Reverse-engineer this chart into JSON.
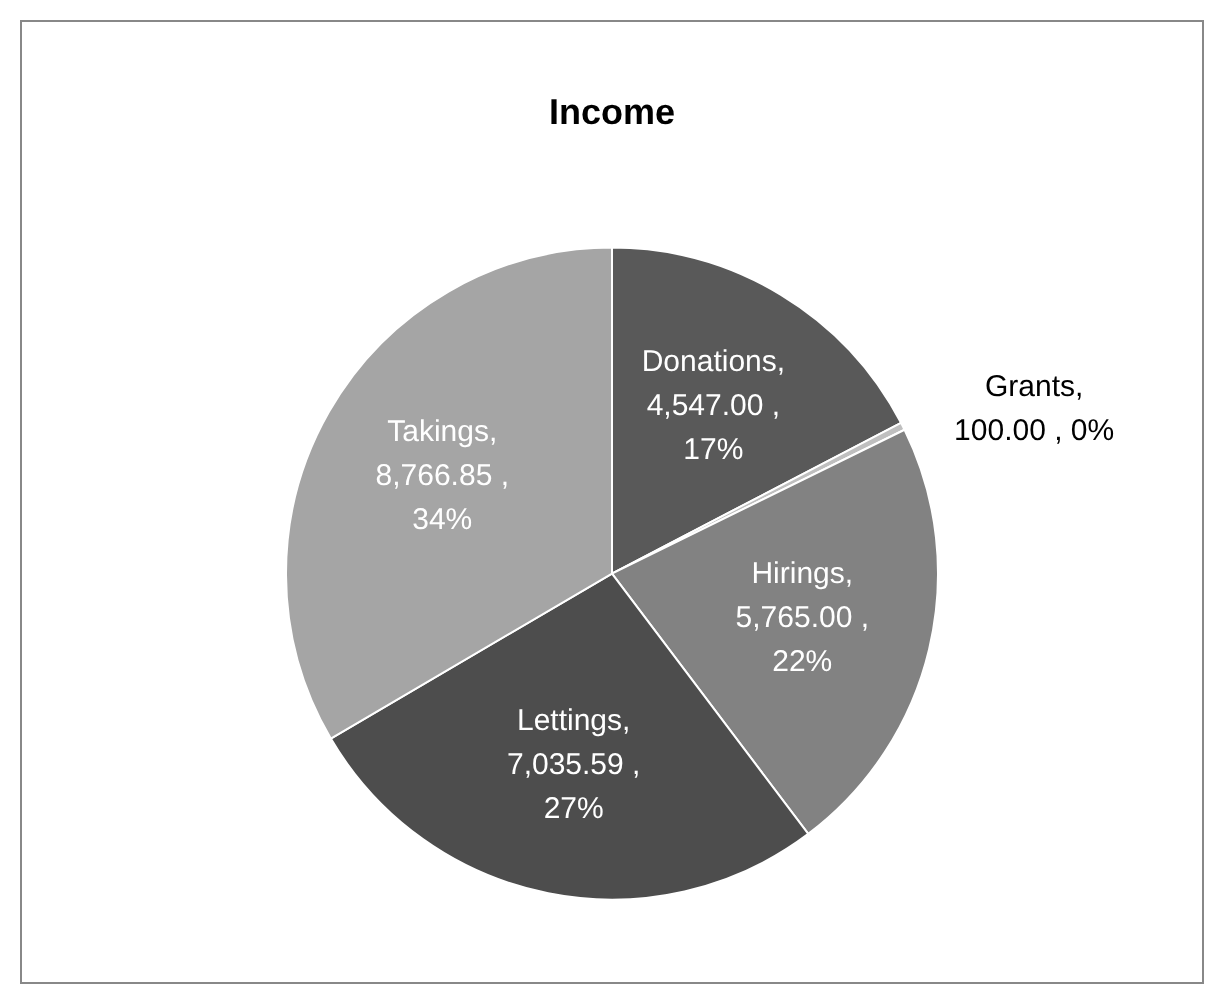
{
  "chart_data": {
    "type": "pie",
    "title": "Income",
    "categories": [
      "Donations",
      "Grants",
      "Hirings",
      "Lettings",
      "Takings"
    ],
    "values": [
      4547.0,
      100.0,
      5765.0,
      7035.59,
      8766.85
    ],
    "colors": [
      "#595959",
      "#bfbfbf",
      "#828282",
      "#4d4d4d",
      "#a5a5a5"
    ],
    "value_labels": [
      ", 4,547.00 , 17%",
      ", 100.00 , 0%",
      ", 5,765.00 , 22%",
      ", 7,035.59 , 27%",
      ", 8,766.85 , 34%"
    ],
    "legend": false
  }
}
